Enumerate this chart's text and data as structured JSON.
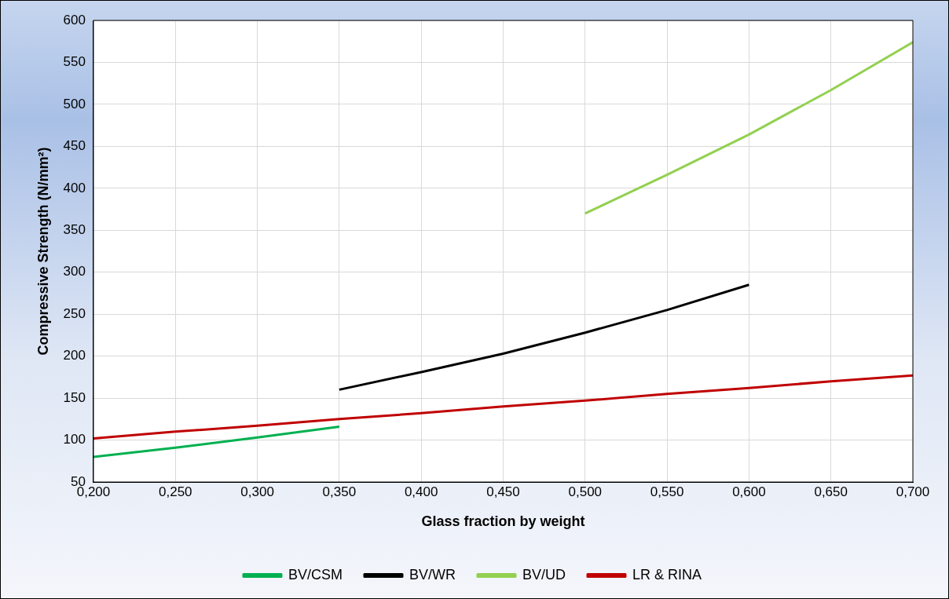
{
  "chart_data": {
    "type": "line",
    "xlabel": "Glass fraction by weight",
    "ylabel": "Compressive Strength (N/mm²)",
    "series": [
      {
        "name": "BV/CSM",
        "color": "#00b050",
        "x": [
          0.2,
          0.25,
          0.3,
          0.35
        ],
        "values": [
          80,
          91,
          103,
          116
        ]
      },
      {
        "name": "BV/WR",
        "color": "#000000",
        "x": [
          0.35,
          0.4,
          0.45,
          0.5,
          0.55,
          0.6
        ],
        "values": [
          160,
          181,
          203,
          228,
          255,
          285
        ]
      },
      {
        "name": "BV/UD",
        "color": "#92d050",
        "x": [
          0.5,
          0.55,
          0.6,
          0.65,
          0.7
        ],
        "values": [
          370,
          416,
          464,
          517,
          574
        ]
      },
      {
        "name": "LR & RINA",
        "color": "#c00000",
        "x": [
          0.2,
          0.25,
          0.3,
          0.35,
          0.4,
          0.45,
          0.5,
          0.55,
          0.6,
          0.65,
          0.7
        ],
        "values": [
          102,
          110,
          117,
          125,
          132,
          140,
          147,
          155,
          162,
          170,
          177
        ]
      }
    ],
    "xlim": [
      0.2,
      0.7
    ],
    "xticks": [
      {
        "value": 0.2,
        "label": "0,200"
      },
      {
        "value": 0.25,
        "label": "0,250"
      },
      {
        "value": 0.3,
        "label": "0,300"
      },
      {
        "value": 0.35,
        "label": "0,350"
      },
      {
        "value": 0.4,
        "label": "0,400"
      },
      {
        "value": 0.45,
        "label": "0,450"
      },
      {
        "value": 0.5,
        "label": "0,500"
      },
      {
        "value": 0.55,
        "label": "0,550"
      },
      {
        "value": 0.6,
        "label": "0,600"
      },
      {
        "value": 0.65,
        "label": "0,650"
      },
      {
        "value": 0.7,
        "label": "0,700"
      }
    ],
    "ylim": [
      50,
      600
    ],
    "yticks": [
      50,
      100,
      150,
      200,
      250,
      300,
      350,
      400,
      450,
      500,
      550,
      600
    ],
    "grid": true,
    "legend": "bottom",
    "marker": "none"
  }
}
